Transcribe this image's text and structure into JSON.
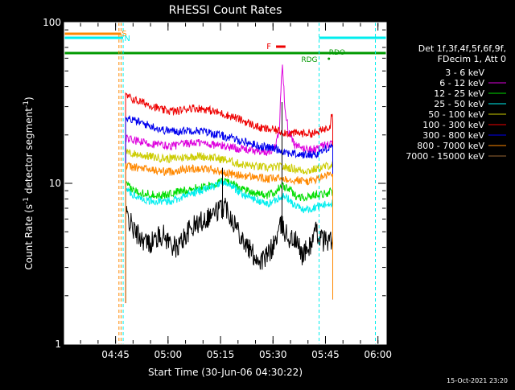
{
  "chart_data": {
    "type": "line",
    "title": "RHESSI Count Rates",
    "xlabel": "Start Time (30-Jun-06 04:30:22)",
    "ylabel": "Count Rate (s⁻¹ detector segment⁻¹)",
    "ylabel_main": "Count Rate (s",
    "ylabel_sup1": "-1",
    "ylabel_mid": " detector segment",
    "ylabel_sup2": "-1",
    "ylabel_end": ")",
    "y_scale": "log",
    "ylim": [
      1,
      100
    ],
    "y_ticks": [
      {
        "value": 1,
        "label": "1"
      },
      {
        "value": 10,
        "label": "10"
      },
      {
        "value": 100,
        "label": "100"
      }
    ],
    "xlim_minutes": [
      0,
      92
    ],
    "x_ticks": [
      {
        "label": "04:45",
        "t": 14.63
      },
      {
        "label": "05:00",
        "t": 29.63
      },
      {
        "label": "05:15",
        "t": 44.63
      },
      {
        "label": "05:30",
        "t": 59.63
      },
      {
        "label": "05:45",
        "t": 74.63
      },
      {
        "label": "06:00",
        "t": 89.63
      }
    ],
    "legend": {
      "position": "right",
      "header": [
        "Det 1f,3f,4f,5f,6f,9f,",
        "FDecim 1, Att 0"
      ],
      "entries": [
        {
          "label": "3 - 6 keV",
          "color": "#000000"
        },
        {
          "label": "6 - 12 keV",
          "color": "#dd00dd"
        },
        {
          "label": "12 - 25 keV",
          "color": "#00dd00"
        },
        {
          "label": "25 - 50 keV",
          "color": "#00eeee"
        },
        {
          "label": "50 - 100 keV",
          "color": "#cccc00"
        },
        {
          "label": "100 - 300 keV",
          "color": "#ee0000"
        },
        {
          "label": "300 - 800 keV",
          "color": "#0000ee"
        },
        {
          "label": "800 - 7000 keV",
          "color": "#ff8800"
        },
        {
          "label": "7000 - 15000 keV",
          "color": "#996633"
        }
      ]
    },
    "series": [
      {
        "name": "3 - 6 keV",
        "color": "#000000",
        "start": 17.5,
        "end": 76.7,
        "points": [
          [
            17.5,
            6.5
          ],
          [
            20,
            5.0
          ],
          [
            24,
            4.2
          ],
          [
            28,
            4.8
          ],
          [
            32,
            3.9
          ],
          [
            36,
            5.2
          ],
          [
            40,
            6.0
          ],
          [
            44,
            6.8
          ],
          [
            46,
            7.3
          ],
          [
            48,
            6.0
          ],
          [
            50,
            5.0
          ],
          [
            52,
            4.1
          ],
          [
            54,
            3.6
          ],
          [
            56,
            3.3
          ],
          [
            58,
            3.5
          ],
          [
            60,
            4.2
          ],
          [
            62,
            5.5
          ],
          [
            64,
            4.6
          ],
          [
            66,
            4.4
          ],
          [
            68,
            3.6
          ],
          [
            70,
            4.0
          ],
          [
            72,
            5.0
          ],
          [
            74,
            4.4
          ],
          [
            76,
            4.5
          ],
          [
            76.7,
            4.2
          ]
        ]
      },
      {
        "name": "6 - 12 keV",
        "color": "#dd00dd",
        "start": 17.5,
        "end": 76.7,
        "points": [
          [
            17.5,
            19
          ],
          [
            22,
            18
          ],
          [
            26,
            17.5
          ],
          [
            30,
            17
          ],
          [
            34,
            17.5
          ],
          [
            38,
            18
          ],
          [
            42,
            17.5
          ],
          [
            46,
            17
          ],
          [
            50,
            16.5
          ],
          [
            54,
            16
          ],
          [
            58,
            15.5
          ],
          [
            60,
            16.5
          ],
          [
            61.5,
            22
          ],
          [
            62.3,
            54
          ],
          [
            63,
            30
          ],
          [
            64,
            21
          ],
          [
            66,
            17
          ],
          [
            68,
            16.5
          ],
          [
            70,
            16.3
          ],
          [
            72,
            16.3
          ],
          [
            74,
            17
          ],
          [
            76,
            17.5
          ],
          [
            76.7,
            17.5
          ]
        ]
      },
      {
        "name": "12 - 25 keV",
        "color": "#00dd00",
        "start": 17.5,
        "end": 76.7,
        "points": [
          [
            17.5,
            9.8
          ],
          [
            20,
            9.0
          ],
          [
            24,
            8.6
          ],
          [
            28,
            8.4
          ],
          [
            32,
            8.8
          ],
          [
            36,
            9.2
          ],
          [
            40,
            9.5
          ],
          [
            44,
            10
          ],
          [
            46,
            10.5
          ],
          [
            48,
            10
          ],
          [
            50,
            9.4
          ],
          [
            54,
            8.8
          ],
          [
            58,
            8.4
          ],
          [
            60,
            8.8
          ],
          [
            62,
            9.6
          ],
          [
            64,
            9.3
          ],
          [
            66,
            8.4
          ],
          [
            68,
            8.2
          ],
          [
            70,
            8.2
          ],
          [
            72,
            8.6
          ],
          [
            74,
            8.6
          ],
          [
            76,
            8.8
          ],
          [
            76.7,
            8.7
          ]
        ]
      },
      {
        "name": "25 - 50 keV",
        "color": "#00eeee",
        "start": 17.5,
        "end": 76.7,
        "points": [
          [
            17.5,
            9.2
          ],
          [
            20,
            8.4
          ],
          [
            24,
            7.8
          ],
          [
            28,
            7.6
          ],
          [
            32,
            8.0
          ],
          [
            36,
            8.6
          ],
          [
            40,
            9.2
          ],
          [
            44,
            9.8
          ],
          [
            46,
            10.2
          ],
          [
            48,
            9.6
          ],
          [
            50,
            8.8
          ],
          [
            54,
            8.0
          ],
          [
            58,
            7.4
          ],
          [
            60,
            7.8
          ],
          [
            62,
            8.4
          ],
          [
            64,
            8.0
          ],
          [
            66,
            7.2
          ],
          [
            68,
            6.9
          ],
          [
            70,
            6.9
          ],
          [
            72,
            7.2
          ],
          [
            74,
            7.3
          ],
          [
            76,
            7.6
          ],
          [
            76.7,
            7.5
          ]
        ]
      },
      {
        "name": "50 - 100 keV",
        "color": "#cccc00",
        "start": 17.5,
        "end": 76.7,
        "points": [
          [
            17.5,
            15.5
          ],
          [
            22,
            15
          ],
          [
            26,
            14.5
          ],
          [
            30,
            14.2
          ],
          [
            34,
            14.5
          ],
          [
            38,
            14.8
          ],
          [
            42,
            14.5
          ],
          [
            46,
            14
          ],
          [
            50,
            13.2
          ],
          [
            54,
            12.8
          ],
          [
            58,
            12.5
          ],
          [
            62,
            12.7
          ],
          [
            66,
            12.3
          ],
          [
            68,
            12.0
          ],
          [
            70,
            12.0
          ],
          [
            72,
            12.3
          ],
          [
            74,
            12.6
          ],
          [
            76,
            13
          ],
          [
            76.7,
            13
          ]
        ]
      },
      {
        "name": "100 - 300 keV",
        "color": "#ee0000",
        "start": 17.5,
        "end": 76.7,
        "points": [
          [
            17.5,
            35
          ],
          [
            20,
            33
          ],
          [
            24,
            31
          ],
          [
            28,
            28.5
          ],
          [
            32,
            28
          ],
          [
            36,
            29.5
          ],
          [
            40,
            29
          ],
          [
            44,
            27.5
          ],
          [
            48,
            26
          ],
          [
            52,
            24
          ],
          [
            56,
            22
          ],
          [
            60,
            21.5
          ],
          [
            64,
            20.5
          ],
          [
            68,
            20.5
          ],
          [
            72,
            20.5
          ],
          [
            74,
            21.5
          ],
          [
            76,
            23
          ],
          [
            76.3,
            28
          ],
          [
            76.7,
            25
          ]
        ]
      },
      {
        "name": "300 - 800 keV",
        "color": "#0000ee",
        "start": 17.5,
        "end": 76.7,
        "points": [
          [
            17.5,
            26
          ],
          [
            20,
            24.5
          ],
          [
            24,
            23
          ],
          [
            28,
            21.5
          ],
          [
            32,
            21
          ],
          [
            36,
            21.5
          ],
          [
            40,
            21
          ],
          [
            44,
            20
          ],
          [
            48,
            19
          ],
          [
            52,
            18
          ],
          [
            56,
            17
          ],
          [
            60,
            16.5
          ],
          [
            64,
            15.5
          ],
          [
            68,
            15
          ],
          [
            72,
            15.2
          ],
          [
            74,
            16
          ],
          [
            76,
            17
          ],
          [
            76.7,
            17.5
          ]
        ]
      },
      {
        "name": "800 - 7000 keV",
        "color": "#ff8800",
        "start": 17.5,
        "end": 76.7,
        "points": [
          [
            17.5,
            12.8
          ],
          [
            22,
            12.4
          ],
          [
            26,
            12
          ],
          [
            30,
            11.8
          ],
          [
            34,
            12.2
          ],
          [
            38,
            12.4
          ],
          [
            42,
            12.2
          ],
          [
            46,
            11.6
          ],
          [
            50,
            11.2
          ],
          [
            54,
            11
          ],
          [
            58,
            10.6
          ],
          [
            62,
            10.8
          ],
          [
            66,
            10.5
          ],
          [
            68,
            10.4
          ],
          [
            70,
            10.3
          ],
          [
            72,
            10.6
          ],
          [
            74,
            11
          ],
          [
            76,
            11.4
          ],
          [
            76.7,
            11.2
          ]
        ]
      },
      {
        "name": "7000 - 15000 keV",
        "color": "#996633",
        "start": 17.5,
        "end": 76.7,
        "points": []
      }
    ],
    "annotations": [
      {
        "label": "S",
        "color": "#ff8800"
      },
      {
        "label": "N",
        "color": "#00eeee"
      },
      {
        "label": "F",
        "color": "#ee0000"
      },
      {
        "label": "RDG",
        "color": "#009900"
      },
      {
        "label": "RDO",
        "color": "#009900"
      }
    ]
  },
  "footer": {
    "timestamp": "15-Oct-2021 23:20"
  }
}
